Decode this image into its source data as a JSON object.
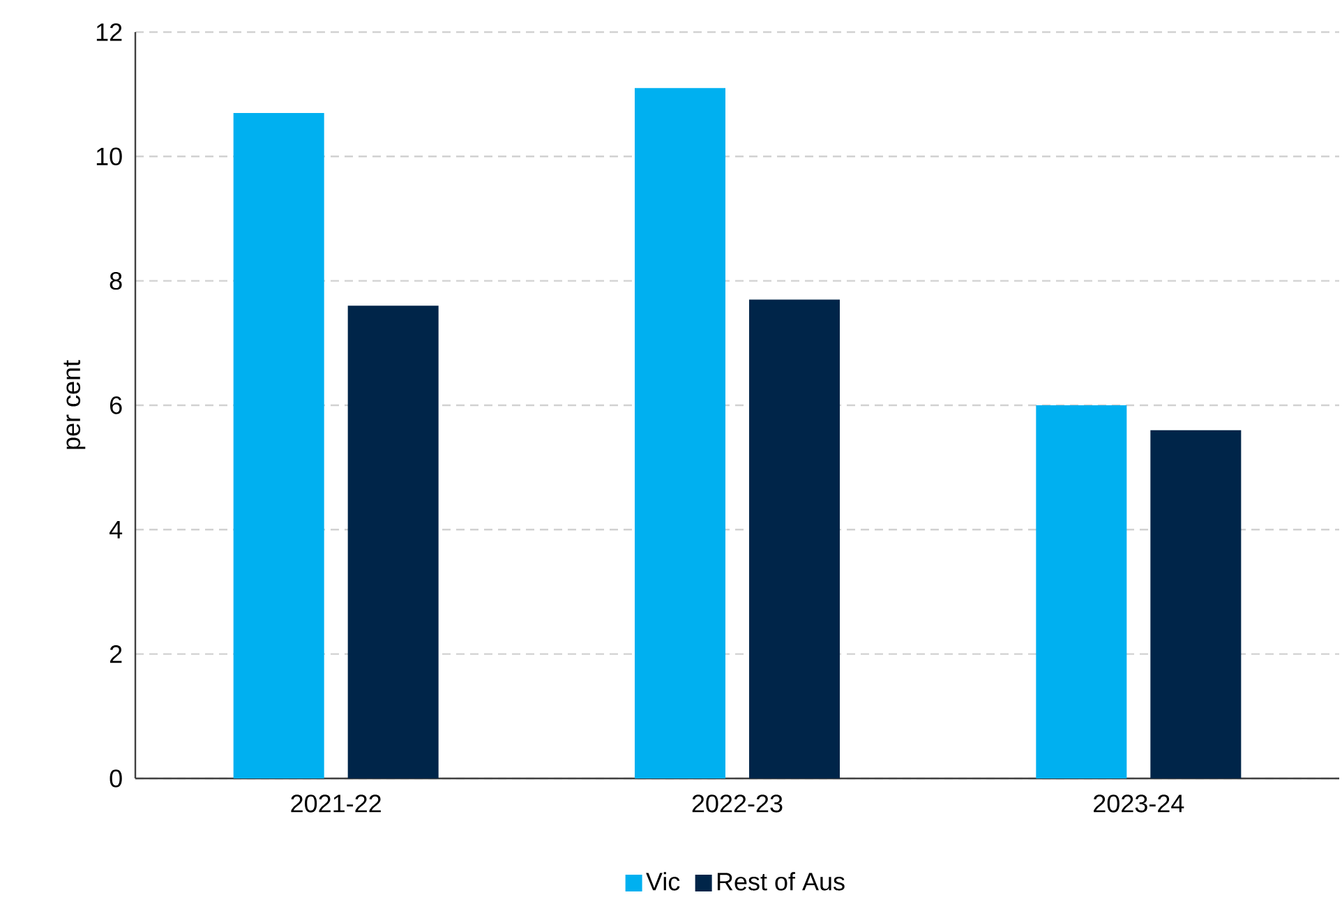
{
  "chart_data": {
    "type": "bar",
    "ylabel": "per cent",
    "categories": [
      "2021-22",
      "2022-23",
      "2023-24"
    ],
    "series": [
      {
        "name": "Vic",
        "color": "#00b0f0",
        "values": [
          10.7,
          11.1,
          6.0
        ]
      },
      {
        "name": "Rest of Aus",
        "color": "#002549",
        "values": [
          7.6,
          7.7,
          5.6
        ]
      }
    ],
    "ylim": [
      0,
      12
    ],
    "yticks": [
      0,
      2,
      4,
      6,
      8,
      10,
      12
    ],
    "grid": "y",
    "legend": "bottom"
  }
}
